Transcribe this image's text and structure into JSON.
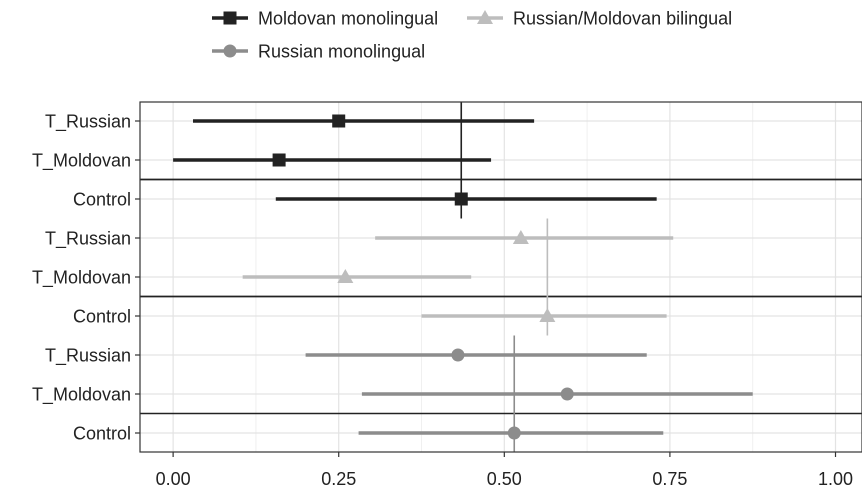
{
  "chart_data": {
    "type": "forest",
    "xlim": [
      -0.05,
      1.04
    ],
    "x_ticks": [
      {
        "value": 0.0,
        "label": "0.00"
      },
      {
        "value": 0.25,
        "label": "0.25"
      },
      {
        "value": 0.5,
        "label": "0.50"
      },
      {
        "value": 0.75,
        "label": "0.75"
      },
      {
        "value": 1.0,
        "label": "1.00"
      }
    ],
    "xlabel": "",
    "ylabel": "",
    "grid": true,
    "legend_position": "top",
    "series": [
      {
        "name": "Moldovan monolingual",
        "marker": "square",
        "color": "#222222",
        "reference_line": 0.435,
        "points": [
          {
            "label": "T_Russian",
            "estimate": 0.25,
            "lower": 0.03,
            "upper": 0.545
          },
          {
            "label": "T_Moldovan",
            "estimate": 0.16,
            "lower": 0.0,
            "upper": 0.48
          },
          {
            "label": "Control",
            "estimate": 0.435,
            "lower": 0.155,
            "upper": 0.73
          }
        ]
      },
      {
        "name": "Russian/Moldovan bilingual",
        "marker": "triangle",
        "color": "#bdbdbd",
        "reference_line": 0.565,
        "points": [
          {
            "label": "T_Russian",
            "estimate": 0.525,
            "lower": 0.305,
            "upper": 0.755
          },
          {
            "label": "T_Moldovan",
            "estimate": 0.26,
            "lower": 0.105,
            "upper": 0.45
          },
          {
            "label": "Control",
            "estimate": 0.565,
            "lower": 0.375,
            "upper": 0.745
          }
        ]
      },
      {
        "name": "Russian monolingual",
        "marker": "circle",
        "color": "#8c8c8c",
        "reference_line": 0.515,
        "points": [
          {
            "label": "T_Russian",
            "estimate": 0.43,
            "lower": 0.2,
            "upper": 0.715
          },
          {
            "label": "T_Moldovan",
            "estimate": 0.595,
            "lower": 0.285,
            "upper": 0.875
          },
          {
            "label": "Control",
            "estimate": 0.515,
            "lower": 0.28,
            "upper": 0.74
          }
        ]
      }
    ],
    "legend": [
      {
        "name": "Moldovan monolingual",
        "marker": "square",
        "color": "#222222"
      },
      {
        "name": "Russian/Moldovan bilingual",
        "marker": "triangle",
        "color": "#bdbdbd"
      },
      {
        "name": "Russian monolingual",
        "marker": "circle",
        "color": "#8c8c8c"
      }
    ]
  }
}
